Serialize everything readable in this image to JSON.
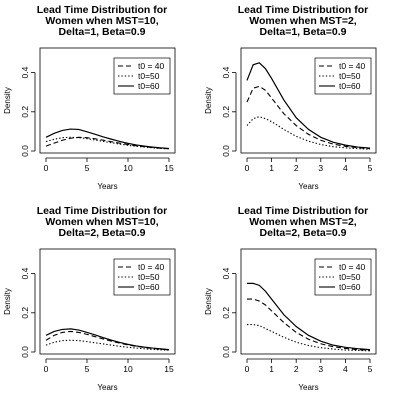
{
  "chart_data": [
    {
      "type": "line",
      "title": [
        "Lead Time Distribution for",
        "Women when MST=10,",
        "Delta=1, Beta=0.9"
      ],
      "xlabel": "Years",
      "ylabel": "Density",
      "xlim": [
        0,
        15
      ],
      "ylim": [
        0,
        0.5
      ],
      "xticks": [
        "0",
        "5",
        "10",
        "15"
      ],
      "yticks": [
        "0.0",
        "0.2",
        "0.4"
      ],
      "legend_position": "top-right",
      "x": [
        0,
        1,
        2,
        3,
        4,
        5,
        6,
        7,
        8,
        9,
        10,
        11,
        12,
        13,
        14,
        15
      ],
      "series": [
        {
          "name": "t0 = 40",
          "style": "dashed",
          "values": [
            0.025,
            0.04,
            0.055,
            0.065,
            0.07,
            0.068,
            0.062,
            0.055,
            0.047,
            0.04,
            0.033,
            0.027,
            0.022,
            0.018,
            0.014,
            0.012
          ]
        },
        {
          "name": "t0=50",
          "style": "dotted",
          "values": [
            0.048,
            0.06,
            0.068,
            0.07,
            0.068,
            0.063,
            0.056,
            0.049,
            0.042,
            0.035,
            0.029,
            0.024,
            0.02,
            0.016,
            0.013,
            0.011
          ]
        },
        {
          "name": "t0=60",
          "style": "solid",
          "values": [
            0.07,
            0.09,
            0.105,
            0.112,
            0.11,
            0.098,
            0.085,
            0.072,
            0.06,
            0.049,
            0.039,
            0.031,
            0.025,
            0.02,
            0.016,
            0.013
          ]
        }
      ]
    },
    {
      "type": "line",
      "title": [
        "Lead Time Distribution for",
        "Women when MST=2,",
        "Delta=1, Beta=0.9"
      ],
      "xlabel": "Years",
      "ylabel": "Density",
      "xlim": [
        0,
        5
      ],
      "ylim": [
        0,
        0.5
      ],
      "xticks": [
        "0",
        "1",
        "2",
        "3",
        "4",
        "5"
      ],
      "yticks": [
        "0.0",
        "0.2",
        "0.4"
      ],
      "legend_position": "top-right",
      "x": [
        0,
        0.25,
        0.5,
        0.75,
        1,
        1.5,
        2,
        2.5,
        3,
        3.5,
        4,
        4.5,
        5
      ],
      "series": [
        {
          "name": "t0 = 40",
          "style": "dashed",
          "values": [
            0.25,
            0.32,
            0.33,
            0.31,
            0.27,
            0.19,
            0.13,
            0.085,
            0.055,
            0.035,
            0.024,
            0.017,
            0.012
          ]
        },
        {
          "name": "t0=50",
          "style": "dotted",
          "values": [
            0.13,
            0.165,
            0.175,
            0.165,
            0.15,
            0.11,
            0.075,
            0.05,
            0.033,
            0.022,
            0.016,
            0.012,
            0.009
          ]
        },
        {
          "name": "t0=60",
          "style": "solid",
          "values": [
            0.36,
            0.44,
            0.45,
            0.42,
            0.37,
            0.26,
            0.17,
            0.11,
            0.07,
            0.045,
            0.03,
            0.02,
            0.015
          ]
        }
      ]
    },
    {
      "type": "line",
      "title": [
        "Lead Time Distribution for",
        "Women when MST=10,",
        "Delta=2, Beta=0.9"
      ],
      "xlabel": "Years",
      "ylabel": "Density",
      "xlim": [
        0,
        15
      ],
      "ylim": [
        0,
        0.5
      ],
      "xticks": [
        "0",
        "5",
        "10",
        "15"
      ],
      "yticks": [
        "0.0",
        "0.2",
        "0.4"
      ],
      "legend_position": "top-right",
      "x": [
        0,
        1,
        2,
        3,
        4,
        5,
        6,
        7,
        8,
        9,
        10,
        11,
        12,
        13,
        14,
        15
      ],
      "series": [
        {
          "name": "t0 = 40",
          "style": "dashed",
          "values": [
            0.06,
            0.085,
            0.1,
            0.105,
            0.1,
            0.09,
            0.078,
            0.066,
            0.055,
            0.045,
            0.036,
            0.029,
            0.023,
            0.018,
            0.014,
            0.011
          ]
        },
        {
          "name": "t0=50",
          "style": "dotted",
          "values": [
            0.035,
            0.05,
            0.058,
            0.06,
            0.058,
            0.053,
            0.047,
            0.041,
            0.035,
            0.029,
            0.024,
            0.02,
            0.016,
            0.013,
            0.011,
            0.009
          ]
        },
        {
          "name": "t0=60",
          "style": "solid",
          "values": [
            0.085,
            0.105,
            0.115,
            0.118,
            0.112,
            0.1,
            0.087,
            0.073,
            0.06,
            0.049,
            0.039,
            0.031,
            0.025,
            0.02,
            0.016,
            0.012
          ]
        }
      ]
    },
    {
      "type": "line",
      "title": [
        "Lead Time Distribution for",
        "Women when MST=2,",
        "Delta=2, Beta=0.9"
      ],
      "xlabel": "Years",
      "ylabel": "Density",
      "xlim": [
        0,
        5
      ],
      "ylim": [
        0,
        0.5
      ],
      "xticks": [
        "0",
        "1",
        "2",
        "3",
        "4",
        "5"
      ],
      "yticks": [
        "0.0",
        "0.2",
        "0.4"
      ],
      "legend_position": "top-right",
      "x": [
        0,
        0.25,
        0.5,
        0.75,
        1,
        1.5,
        2,
        2.5,
        3,
        3.5,
        4,
        4.5,
        5
      ],
      "series": [
        {
          "name": "t0 = 40",
          "style": "dashed",
          "values": [
            0.27,
            0.27,
            0.26,
            0.24,
            0.21,
            0.15,
            0.1,
            0.065,
            0.042,
            0.027,
            0.018,
            0.012,
            0.009
          ]
        },
        {
          "name": "t0=50",
          "style": "dotted",
          "values": [
            0.14,
            0.14,
            0.135,
            0.12,
            0.105,
            0.075,
            0.05,
            0.033,
            0.022,
            0.015,
            0.01,
            0.008,
            0.006
          ]
        },
        {
          "name": "t0=60",
          "style": "solid",
          "values": [
            0.35,
            0.35,
            0.34,
            0.31,
            0.27,
            0.19,
            0.13,
            0.085,
            0.055,
            0.035,
            0.024,
            0.017,
            0.012
          ]
        }
      ]
    }
  ]
}
